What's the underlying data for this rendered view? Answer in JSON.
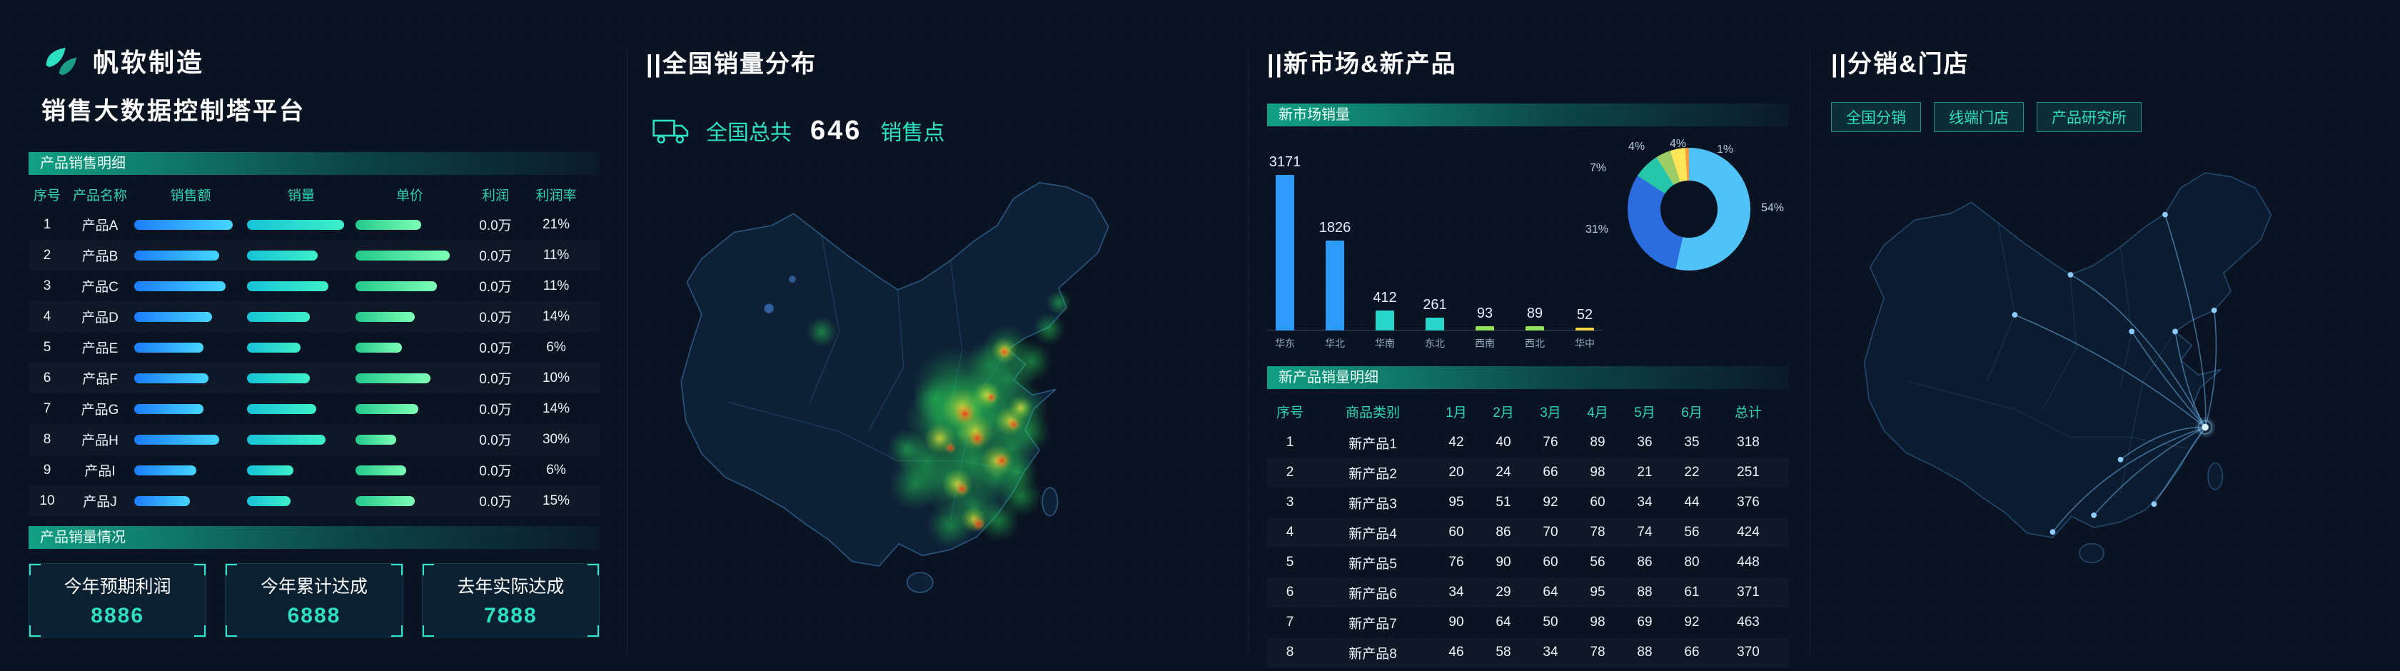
{
  "page": {
    "background": "#0a1322",
    "accent_teal": "#2ee0c2",
    "accent_blue": "#1c7dff"
  },
  "brand": {
    "company": "帆软制造",
    "platform": "销售大数据控制塔平台",
    "logo_icon": "leaf-icon"
  },
  "left_panel": {
    "table_section": "产品销售明细",
    "columns": [
      "序号",
      "产品名称",
      "销售额",
      "销量",
      "单价",
      "利润",
      "利润率"
    ],
    "rows": [
      {
        "no": "1",
        "name": "产品A",
        "sales": 97,
        "volume": 100,
        "price": 68,
        "profit": "0.0万",
        "rate": "21%"
      },
      {
        "no": "2",
        "name": "产品B",
        "sales": 84,
        "volume": 73,
        "price": 97,
        "profit": "0.0万",
        "rate": "11%"
      },
      {
        "no": "3",
        "name": "产品C",
        "sales": 90,
        "volume": 84,
        "price": 84,
        "profit": "0.0万",
        "rate": "11%"
      },
      {
        "no": "4",
        "name": "产品D",
        "sales": 77,
        "volume": 65,
        "price": 61,
        "profit": "0.0万",
        "rate": "14%"
      },
      {
        "no": "5",
        "name": "产品E",
        "sales": 68,
        "volume": 55,
        "price": 48,
        "profit": "0.0万",
        "rate": "6%"
      },
      {
        "no": "6",
        "name": "产品F",
        "sales": 73,
        "volume": 65,
        "price": 77,
        "profit": "0.0万",
        "rate": "10%"
      },
      {
        "no": "7",
        "name": "产品G",
        "sales": 68,
        "volume": 71,
        "price": 65,
        "profit": "0.0万",
        "rate": "14%"
      },
      {
        "no": "8",
        "name": "产品H",
        "sales": 84,
        "volume": 81,
        "price": 42,
        "profit": "0.0万",
        "rate": "30%"
      },
      {
        "no": "9",
        "name": "产品I",
        "sales": 61,
        "volume": 48,
        "price": 52,
        "profit": "0.0万",
        "rate": "6%"
      },
      {
        "no": "10",
        "name": "产品J",
        "sales": 55,
        "volume": 45,
        "price": 61,
        "profit": "0.0万",
        "rate": "15%"
      }
    ],
    "summary_section": "产品销量情况",
    "cards": [
      {
        "label": "今年预期利润",
        "value": "8886"
      },
      {
        "label": "今年累计达成",
        "value": "6888"
      },
      {
        "label": "去年实际达成",
        "value": "7888"
      }
    ]
  },
  "sales_map_panel": {
    "title": "||全国销量分布",
    "stat_prefix": "全国总共",
    "stat_value": "646",
    "stat_suffix": "销售点",
    "icon": "truck-icon"
  },
  "market_panel": {
    "title": "||新市场&新产品",
    "bar_section": "新市场销量",
    "table_section": "新产品销量明细"
  },
  "distribution_panel": {
    "title": "||分销&门店",
    "tabs": [
      "全国分销",
      "线端门店",
      "产品研究所"
    ]
  },
  "chart_data": [
    {
      "type": "bar",
      "title": "新市场销量",
      "categories": [
        "华东",
        "华北",
        "华南",
        "东北",
        "西南",
        "西北",
        "华中"
      ],
      "values": [
        3171,
        1826,
        412,
        261,
        93,
        89,
        52
      ],
      "colors": [
        "#2f9bff",
        "#2f9bff",
        "#27d5cb",
        "#27d5cb",
        "#93e35c",
        "#93e35c",
        "#ffd944"
      ],
      "xlabel": "",
      "ylabel": "",
      "ylim": [
        0,
        3500
      ],
      "grid": false,
      "legend": "none"
    },
    {
      "type": "pie",
      "title": "新市场销量占比",
      "labels": [
        "54%",
        "31%",
        "7%",
        "4%",
        "4%",
        "1%"
      ],
      "values": [
        54,
        31,
        7,
        4,
        4,
        1
      ],
      "colors": [
        "#4fc3f7",
        "#2b6cdf",
        "#26c6aa",
        "#9ccc65",
        "#ffe558",
        "#ff9a3c"
      ],
      "legend": "none"
    },
    {
      "type": "table",
      "title": "新产品销量明细",
      "columns": [
        "序号",
        "商品类别",
        "1月",
        "2月",
        "3月",
        "4月",
        "5月",
        "6月",
        "总计"
      ],
      "rows": [
        [
          "1",
          "新产品1",
          "42",
          "40",
          "76",
          "89",
          "36",
          "35",
          "318"
        ],
        [
          "2",
          "新产品2",
          "20",
          "24",
          "66",
          "98",
          "21",
          "22",
          "251"
        ],
        [
          "3",
          "新产品3",
          "95",
          "51",
          "92",
          "60",
          "34",
          "44",
          "376"
        ],
        [
          "4",
          "新产品4",
          "60",
          "86",
          "70",
          "78",
          "74",
          "56",
          "424"
        ],
        [
          "5",
          "新产品5",
          "76",
          "90",
          "60",
          "56",
          "86",
          "80",
          "448"
        ],
        [
          "6",
          "新产品6",
          "34",
          "29",
          "64",
          "95",
          "88",
          "61",
          "371"
        ],
        [
          "7",
          "新产品7",
          "90",
          "64",
          "50",
          "98",
          "69",
          "92",
          "463"
        ],
        [
          "8",
          "新产品8",
          "46",
          "58",
          "34",
          "78",
          "88",
          "66",
          "370"
        ]
      ]
    }
  ]
}
